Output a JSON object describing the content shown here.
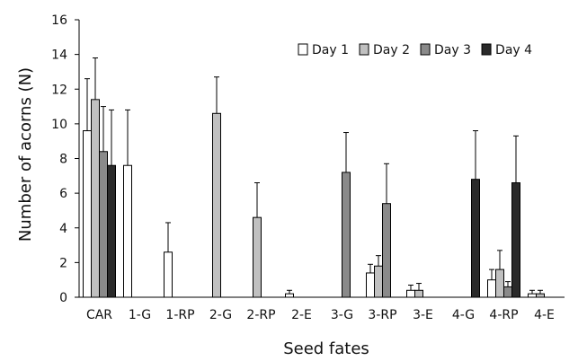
{
  "chart_data": {
    "type": "bar",
    "xlabel": "Seed fates",
    "ylabel": "Number of acorns (N)",
    "ylim": [
      0,
      16
    ],
    "yticks": [
      0,
      2,
      4,
      6,
      8,
      10,
      12,
      14,
      16
    ],
    "categories": [
      "CAR",
      "1-G",
      "1-RP",
      "2-G",
      "2-RP",
      "2-E",
      "3-G",
      "3-RP",
      "3-E",
      "4-G",
      "4-RP",
      "4-E"
    ],
    "legend_position": "top-right",
    "series": [
      {
        "name": "Day 1",
        "color": "#ffffff",
        "values": [
          9.6,
          7.6,
          2.6,
          null,
          null,
          0.2,
          null,
          1.4,
          0.4,
          null,
          1.0,
          0.2
        ],
        "errors": [
          3.0,
          3.2,
          1.7,
          null,
          null,
          0.2,
          null,
          0.5,
          0.3,
          null,
          0.6,
          0.2
        ]
      },
      {
        "name": "Day 2",
        "color": "#c0c0c0",
        "values": [
          11.4,
          null,
          null,
          10.6,
          4.6,
          null,
          null,
          1.8,
          0.4,
          null,
          1.6,
          0.2
        ],
        "errors": [
          2.4,
          null,
          null,
          2.1,
          2.0,
          null,
          null,
          0.6,
          0.4,
          null,
          1.1,
          0.2
        ]
      },
      {
        "name": "Day 3",
        "color": "#8a8a8a",
        "values": [
          8.4,
          null,
          null,
          null,
          null,
          null,
          7.2,
          5.4,
          null,
          null,
          0.6,
          null
        ],
        "errors": [
          2.6,
          null,
          null,
          null,
          null,
          null,
          2.3,
          2.3,
          null,
          null,
          0.3,
          null
        ]
      },
      {
        "name": "Day 4",
        "color": "#2a2a2a",
        "values": [
          7.6,
          null,
          null,
          null,
          null,
          null,
          null,
          null,
          null,
          6.8,
          6.6,
          null
        ],
        "errors": [
          3.2,
          null,
          null,
          null,
          null,
          null,
          null,
          null,
          null,
          2.8,
          2.7,
          null
        ]
      }
    ]
  }
}
